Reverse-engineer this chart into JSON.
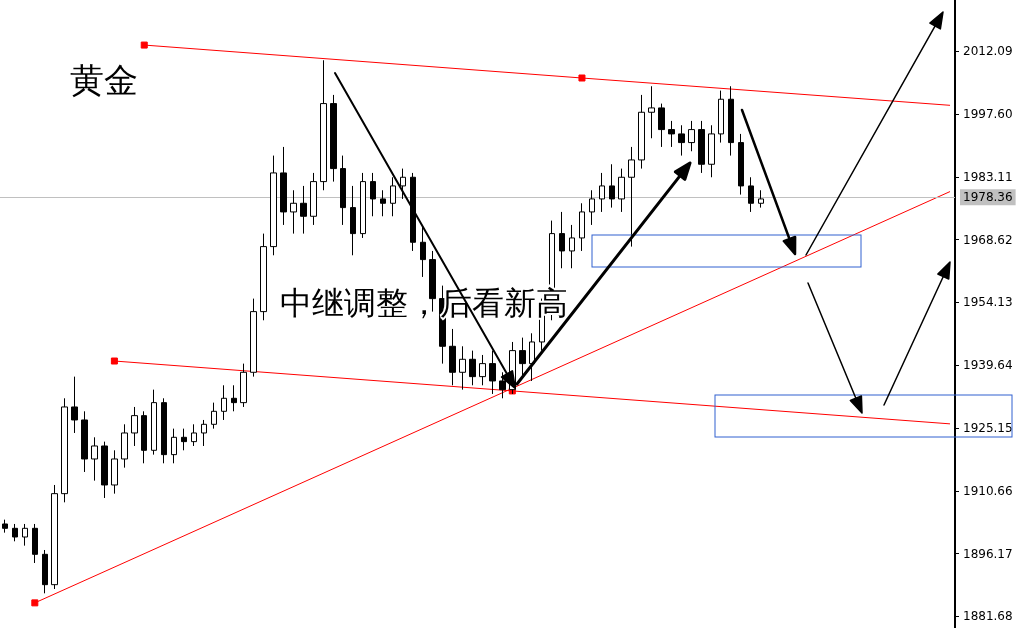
{
  "chart_data": {
    "type": "candlestick",
    "title": "黄金",
    "annotations": [
      "中继调整，后看新高"
    ],
    "categories": [
      null,
      null,
      null,
      null,
      null,
      null,
      null,
      null,
      null,
      null,
      null,
      null,
      null,
      null,
      null,
      null,
      null,
      null,
      null,
      null,
      null,
      null,
      null,
      null,
      null,
      null,
      null,
      null,
      null,
      null,
      null,
      null,
      null,
      null,
      null,
      null,
      null,
      null,
      null,
      null,
      null,
      null,
      null,
      null,
      null,
      null,
      null,
      null,
      null,
      null,
      null,
      null,
      null,
      null,
      null,
      null,
      null,
      null,
      null,
      null,
      null,
      null,
      null,
      null,
      null,
      null,
      null,
      null,
      null,
      null,
      null,
      null,
      null,
      null,
      null,
      null,
      null,
      null,
      null,
      null,
      null,
      null,
      null,
      null,
      null,
      null,
      null,
      null,
      null,
      null,
      null,
      null,
      null,
      null,
      null,
      null
    ],
    "ohlc": [
      [
        1903,
        1904,
        1901,
        1902
      ],
      [
        1902,
        1903,
        1899,
        1900
      ],
      [
        1900,
        1903,
        1898,
        1902
      ],
      [
        1902,
        1903,
        1894,
        1896
      ],
      [
        1896,
        1897,
        1887,
        1889
      ],
      [
        1889,
        1912,
        1888,
        1910
      ],
      [
        1910,
        1932,
        1908,
        1930
      ],
      [
        1930,
        1937,
        1924,
        1927
      ],
      [
        1927,
        1929,
        1915,
        1918
      ],
      [
        1918,
        1923,
        1913,
        1921
      ],
      [
        1921,
        1922,
        1909,
        1912
      ],
      [
        1912,
        1920,
        1910,
        1918
      ],
      [
        1918,
        1926,
        1916,
        1924
      ],
      [
        1924,
        1930,
        1921,
        1928
      ],
      [
        1928,
        1929,
        1917,
        1920
      ],
      [
        1920,
        1934,
        1919,
        1931
      ],
      [
        1931,
        1932,
        1917,
        1919
      ],
      [
        1919,
        1925,
        1917,
        1923
      ],
      [
        1923,
        1925,
        1920,
        1922
      ],
      [
        1922,
        1926,
        1921,
        1924
      ],
      [
        1924,
        1927,
        1921,
        1926
      ],
      [
        1926,
        1931,
        1925,
        1929
      ],
      [
        1929,
        1935,
        1927,
        1932
      ],
      [
        1932,
        1935,
        1929,
        1931
      ],
      [
        1931,
        1940,
        1930,
        1938
      ],
      [
        1938,
        1955,
        1937,
        1952
      ],
      [
        1952,
        1970,
        1950,
        1967
      ],
      [
        1967,
        1988,
        1965,
        1984
      ],
      [
        1984,
        1990,
        1972,
        1975
      ],
      [
        1975,
        1980,
        1970,
        1977
      ],
      [
        1977,
        1981,
        1970,
        1974
      ],
      [
        1974,
        1984,
        1972,
        1982
      ],
      [
        1982,
        2010,
        1980,
        2000
      ],
      [
        2000,
        2002,
        1982,
        1985
      ],
      [
        1985,
        1988,
        1972,
        1976
      ],
      [
        1976,
        1981,
        1965,
        1970
      ],
      [
        1970,
        1984,
        1969,
        1982
      ],
      [
        1982,
        1984,
        1974,
        1978
      ],
      [
        1978,
        1980,
        1974,
        1977
      ],
      [
        1977,
        1983,
        1974,
        1981
      ],
      [
        1981,
        1985,
        1978,
        1983
      ],
      [
        1983,
        1984,
        1966,
        1968
      ],
      [
        1968,
        1972,
        1960,
        1964
      ],
      [
        1964,
        1966,
        1952,
        1955
      ],
      [
        1955,
        1958,
        1940,
        1944
      ],
      [
        1944,
        1948,
        1935,
        1938
      ],
      [
        1938,
        1944,
        1934,
        1941
      ],
      [
        1941,
        1943,
        1935,
        1937
      ],
      [
        1937,
        1942,
        1935,
        1940
      ],
      [
        1940,
        1943,
        1933,
        1936
      ],
      [
        1936,
        1938,
        1932,
        1934
      ],
      [
        1934,
        1945,
        1933,
        1943
      ],
      [
        1943,
        1946,
        1937,
        1940
      ],
      [
        1940,
        1947,
        1936,
        1945
      ],
      [
        1945,
        1955,
        1943,
        1952
      ],
      [
        1952,
        1973,
        1950,
        1970
      ],
      [
        1970,
        1975,
        1962,
        1966
      ],
      [
        1966,
        1972,
        1962,
        1969
      ],
      [
        1969,
        1977,
        1966,
        1975
      ],
      [
        1975,
        1980,
        1972,
        1978
      ],
      [
        1978,
        1984,
        1975,
        1981
      ],
      [
        1981,
        1986,
        1976,
        1978
      ],
      [
        1978,
        1985,
        1975,
        1983
      ],
      [
        1983,
        1990,
        1967,
        1987
      ],
      [
        1987,
        2002,
        1985,
        1998
      ],
      [
        1998,
        2004,
        1992,
        1999
      ],
      [
        1999,
        2000,
        1990,
        1994
      ],
      [
        1994,
        1996,
        1990,
        1993
      ],
      [
        1993,
        1995,
        1988,
        1991
      ],
      [
        1991,
        1996,
        1989,
        1994
      ],
      [
        1994,
        1996,
        1984,
        1986
      ],
      [
        1986,
        1995,
        1983,
        1993
      ],
      [
        1993,
        2003,
        1991,
        2001
      ],
      [
        2001,
        2004,
        1988,
        1991
      ],
      [
        1991,
        1993,
        1979,
        1981
      ],
      [
        1981,
        1983,
        1975,
        1977
      ],
      [
        1977,
        1980,
        1976,
        1978
      ],
      null,
      null,
      null,
      null,
      null,
      null,
      null,
      null,
      null,
      null,
      null,
      null,
      null,
      null,
      null,
      null,
      null,
      null,
      null
    ],
    "series": [
      {
        "type": "line",
        "color": "#ff0000",
        "values": [
          null,
          null,
          null,
          null,
          null,
          null,
          null,
          null,
          null,
          null,
          null,
          null,
          null,
          null,
          2013.5,
          null,
          null,
          null,
          null,
          null,
          null,
          null,
          null,
          null,
          null,
          null,
          null,
          null,
          null,
          null,
          null,
          null,
          null,
          null,
          null,
          null,
          null,
          null,
          null,
          null,
          null,
          null,
          null,
          null,
          null,
          null,
          null,
          null,
          null,
          null,
          null,
          null,
          null,
          null,
          null,
          null,
          null,
          null,
          2005.9,
          null,
          null,
          null,
          null,
          null,
          null,
          null,
          null,
          null,
          null,
          null,
          null,
          null,
          null,
          null,
          null,
          null,
          null,
          null,
          null,
          null,
          null,
          null,
          null,
          null,
          null,
          null,
          null,
          null,
          null,
          null,
          null,
          null,
          null,
          null,
          null,
          1999.6
        ]
      },
      {
        "type": "line",
        "color": "#ff0000",
        "values": [
          null,
          null,
          null,
          null,
          null,
          null,
          null,
          null,
          null,
          null,
          null,
          1940.6,
          null,
          null,
          null,
          null,
          null,
          null,
          null,
          null,
          null,
          null,
          null,
          null,
          null,
          null,
          null,
          null,
          null,
          null,
          null,
          null,
          null,
          null,
          null,
          null,
          null,
          null,
          null,
          null,
          null,
          null,
          null,
          null,
          null,
          null,
          null,
          null,
          null,
          null,
          null,
          1933.7,
          null,
          null,
          null,
          null,
          null,
          null,
          null,
          null,
          null,
          null,
          null,
          null,
          null,
          null,
          null,
          null,
          null,
          null,
          null,
          null,
          null,
          null,
          null,
          null,
          null,
          null,
          null,
          null,
          null,
          null,
          null,
          null,
          null,
          null,
          null,
          null,
          null,
          null,
          null,
          null,
          null,
          null,
          null,
          1926.1
        ]
      },
      {
        "type": "line",
        "color": "#ff0000",
        "values": [
          null,
          null,
          null,
          1884.8,
          null,
          null,
          null,
          null,
          null,
          null,
          null,
          null,
          null,
          null,
          null,
          null,
          null,
          null,
          null,
          null,
          null,
          null,
          null,
          null,
          null,
          null,
          null,
          null,
          null,
          null,
          null,
          null,
          null,
          null,
          null,
          null,
          null,
          null,
          null,
          null,
          null,
          null,
          null,
          null,
          null,
          null,
          null,
          null,
          null,
          null,
          null,
          null,
          null,
          null,
          null,
          null,
          null,
          null,
          null,
          null,
          null,
          null,
          null,
          null,
          null,
          null,
          null,
          null,
          null,
          null,
          null,
          null,
          null,
          null,
          null,
          null,
          null,
          null,
          null,
          null,
          null,
          null,
          null,
          null,
          null,
          null,
          null,
          null,
          null,
          null,
          null,
          null,
          null,
          null,
          null,
          1979.7
        ]
      }
    ],
    "marker": "square",
    "ylim": [
      1879,
      2023.9
    ],
    "yticks": [
      2012.09,
      {
        "value": 1997.6,
        "label": "1997.60"
      },
      1983.11,
      1968.62,
      1954.13,
      1939.64,
      1925.15,
      1910.66,
      1896.17,
      1881.68
    ],
    "tick_labels": "y",
    "ref_lines": [
      {
        "axis": "y",
        "value": 1978.36,
        "label": "1978.36",
        "color": "#c0c0c0"
      }
    ]
  }
}
